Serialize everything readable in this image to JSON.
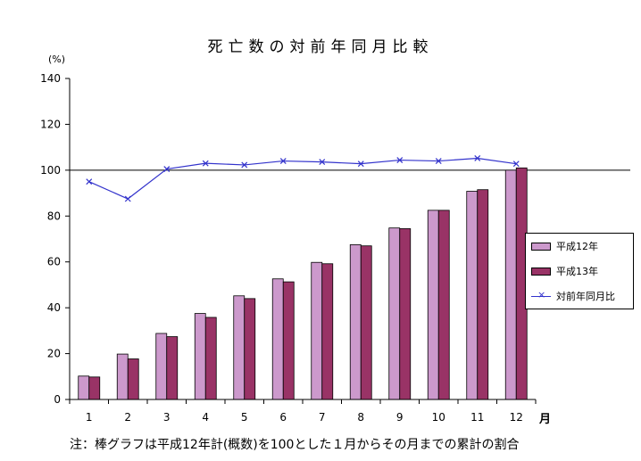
{
  "chart_data": {
    "type": "bar",
    "title": "死亡数の対前年同月比較",
    "ylabel": "(%)",
    "xlabel": "月",
    "ylim": [
      0,
      140
    ],
    "yticks": [
      0,
      20,
      40,
      60,
      80,
      100,
      120,
      140
    ],
    "reference_line": 100,
    "categories": [
      "1",
      "2",
      "3",
      "4",
      "5",
      "6",
      "7",
      "8",
      "9",
      "10",
      "11",
      "12"
    ],
    "series": [
      {
        "name": "平成12年",
        "type": "bar",
        "color": "#cc99cc",
        "values": [
          10.2,
          19.8,
          28.8,
          37.5,
          45.2,
          52.6,
          59.8,
          67.5,
          74.8,
          82.5,
          90.8,
          100.0
        ]
      },
      {
        "name": "平成13年",
        "type": "bar",
        "color": "#993366",
        "values": [
          9.8,
          17.7,
          27.4,
          35.8,
          44.0,
          51.3,
          59.2,
          67.0,
          74.5,
          82.5,
          91.5,
          101.0
        ]
      },
      {
        "name": "対前年同月比",
        "type": "line",
        "color": "#3333cc",
        "marker": "x",
        "values": [
          95.0,
          87.5,
          100.5,
          103.0,
          102.3,
          104.0,
          103.6,
          102.8,
          104.4,
          104.0,
          105.2,
          102.8
        ]
      }
    ],
    "legend_position": "right",
    "note": "注：棒グラフは平成12年計(概数)を100とした１月からその月までの累計の割合"
  }
}
